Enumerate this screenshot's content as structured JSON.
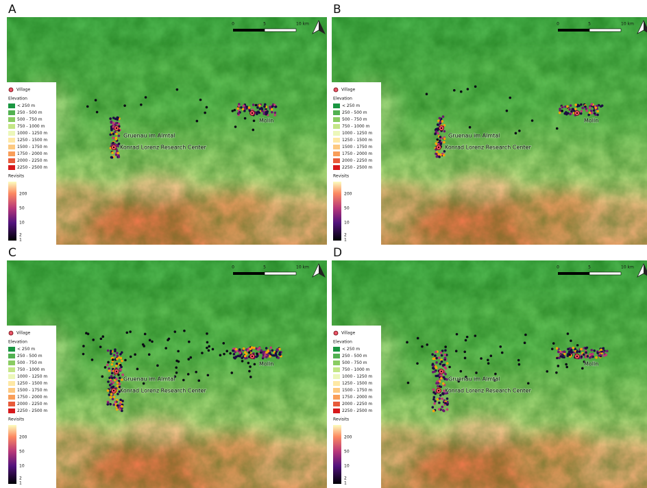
{
  "panels": [
    {
      "label": "A"
    },
    {
      "label": "B"
    },
    {
      "label": "C"
    },
    {
      "label": "D"
    }
  ],
  "scale_bar": {
    "ticks": [
      "0",
      "5",
      "10 km"
    ]
  },
  "legend": {
    "village": "Village",
    "elevation_title": "Elevation",
    "elevation_classes": [
      "< 250 m",
      "250 - 500 m",
      "500 - 750 m",
      "750 - 1000 m",
      "1000 - 1250 m",
      "1250 - 1500 m",
      "1500 - 1750 m",
      "1750 - 2000 m",
      "2000 - 2250 m",
      "2250 - 2500 m"
    ],
    "revisits_title": "Revisits",
    "revisits_ticks": [
      200,
      50,
      10,
      2,
      1
    ]
  },
  "places": {
    "gruenau": "Gruenau im Almtal",
    "klf": "Konrad Lorenz Research Center",
    "molln": "Molln"
  }
}
